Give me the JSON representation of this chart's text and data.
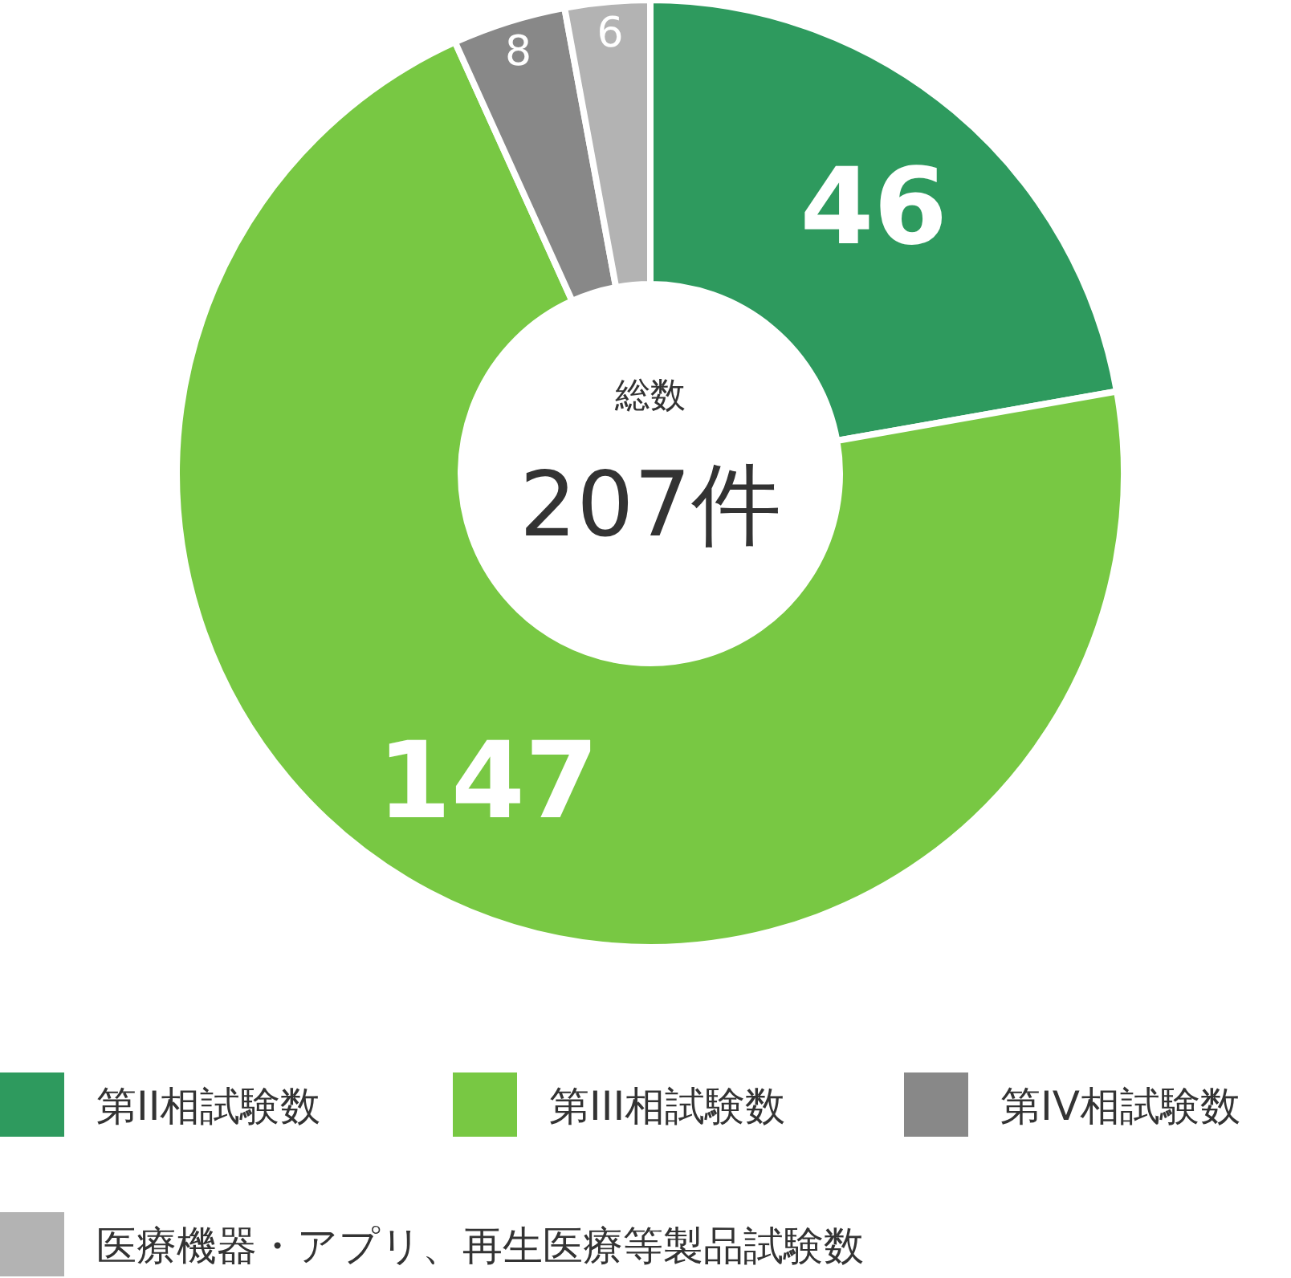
{
  "chart_data": {
    "type": "donut",
    "categories": [
      "第II相試験数",
      "第III相試験数",
      "第IV相試験数",
      "医療機器・アプリ、再生医療等製品試験数"
    ],
    "values": [
      46,
      147,
      8,
      6
    ],
    "colors": [
      "#2e9a5e",
      "#78c843",
      "#888888",
      "#b3b3b3"
    ],
    "data_labels": true,
    "legend": "bottom",
    "annotations": [
      "総数",
      "207件"
    ]
  }
}
